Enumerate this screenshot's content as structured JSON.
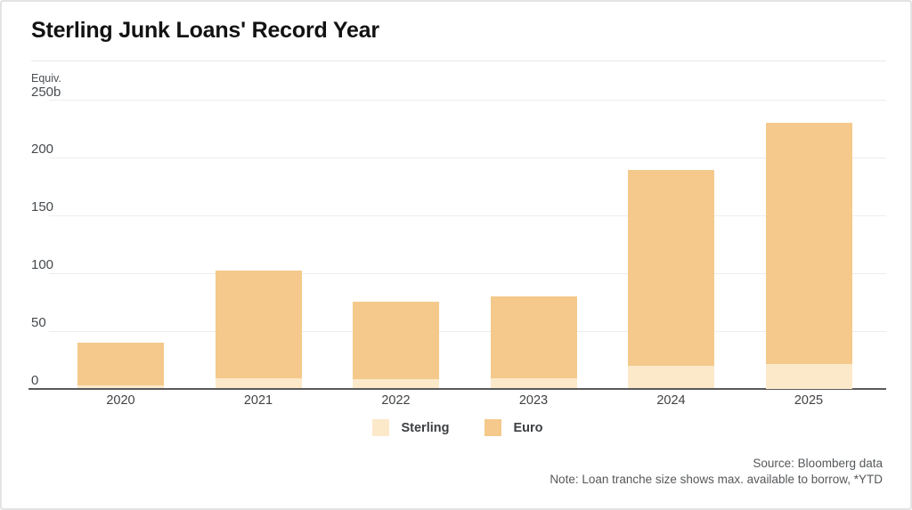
{
  "card": {
    "title": "Sterling Junk Loans' Record Year"
  },
  "chart_data": {
    "type": "bar",
    "stacked": true,
    "title": "Sterling Junk Loans' Record Year",
    "y_axis": {
      "unit_line": "Equiv.",
      "top_label": "250b"
    },
    "categories": [
      "2020",
      "2021",
      "2022",
      "2023",
      "2024",
      "2025"
    ],
    "series": [
      {
        "name": "Sterling",
        "color": "#FCE9CA",
        "values": [
          3,
          9,
          8,
          9,
          20,
          21
        ]
      },
      {
        "name": "Euro",
        "color": "#F4C98B",
        "values": [
          37,
          93,
          67,
          71,
          169,
          209
        ]
      }
    ],
    "totals": [
      40,
      102,
      75,
      80,
      189,
      230
    ],
    "ylim": [
      0,
      250
    ],
    "yticks": [
      0,
      50,
      100,
      150,
      200,
      250
    ],
    "grid": true,
    "legend_position": "bottom"
  },
  "footer": {
    "source": "Source: Bloomberg data",
    "note": "Note: Loan tranche size shows max. available to borrow, *YTD"
  },
  "colors": {
    "gridline": "#ededed",
    "axis_line": "#58595c",
    "tick_text": "#45494d",
    "border": "#e4e4e4",
    "title_text": "#121212",
    "footer_text": "#55585b"
  }
}
